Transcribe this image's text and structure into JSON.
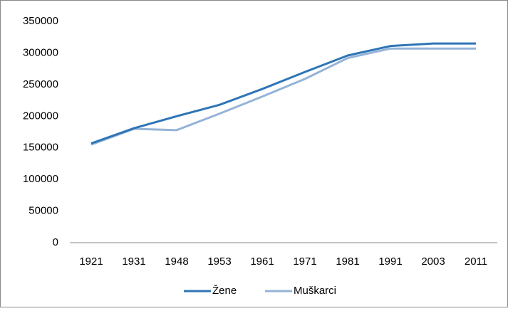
{
  "chart_data": {
    "type": "line",
    "categories": [
      "1921",
      "1931",
      "1948",
      "1953",
      "1961",
      "1971",
      "1981",
      "1991",
      "2003",
      "2011"
    ],
    "series": [
      {
        "name": "Žene",
        "color": "#2e75b6",
        "values": [
          157000,
          181000,
          200000,
          218000,
          243000,
          270000,
          296000,
          311000,
          315000,
          315000
        ]
      },
      {
        "name": "Muškarci",
        "color": "#95b3d7",
        "values": [
          155000,
          180000,
          178000,
          204000,
          231000,
          259000,
          292000,
          307000,
          307000,
          307000
        ]
      }
    ],
    "ylim": [
      0,
      350000
    ],
    "yticks": [
      0,
      50000,
      100000,
      150000,
      200000,
      250000,
      300000,
      350000
    ],
    "grid": false,
    "legend": "bottom"
  }
}
